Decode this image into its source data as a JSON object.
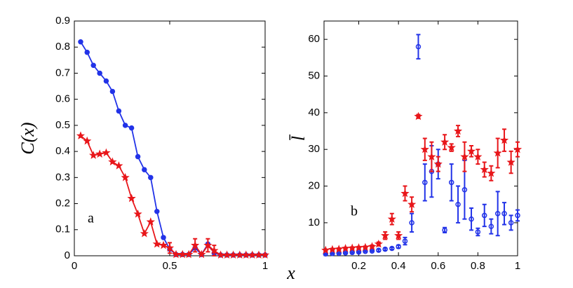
{
  "xlabel": "x",
  "chart_data": [
    {
      "type": "line",
      "ylabel": "C(x)",
      "annotation": "a",
      "x": [
        0.033,
        0.067,
        0.1,
        0.133,
        0.167,
        0.2,
        0.233,
        0.267,
        0.3,
        0.333,
        0.367,
        0.4,
        0.433,
        0.467,
        0.5,
        0.533,
        0.567,
        0.6,
        0.633,
        0.667,
        0.7,
        0.733,
        0.767,
        0.8,
        0.833,
        0.867,
        0.9,
        0.933,
        0.967,
        1
      ],
      "xlim": [
        0,
        1
      ],
      "xticks": [
        0,
        0.5,
        1
      ],
      "ylim": [
        0,
        0.9
      ],
      "yticks": [
        0,
        0.1,
        0.2,
        0.3,
        0.4,
        0.5,
        0.6,
        0.7,
        0.8,
        0.9
      ],
      "series": [
        {
          "color": "#2233e8",
          "marker": "circle",
          "filled": true,
          "lines": true,
          "values": [
            0.82,
            0.78,
            0.73,
            0.7,
            0.67,
            0.63,
            0.555,
            0.5,
            0.49,
            0.38,
            0.33,
            0.3,
            0.17,
            0.07,
            0.025,
            0.005,
            0.005,
            0.005,
            0.03,
            0.005,
            0.045,
            0.01,
            0.003,
            0.003,
            0.003,
            0.003,
            0.003,
            0.003,
            0.003,
            0.003
          ]
        },
        {
          "color": "#e8161a",
          "marker": "star",
          "filled": true,
          "lines": true,
          "values": [
            0.46,
            0.44,
            0.385,
            0.39,
            0.395,
            0.36,
            0.345,
            0.3,
            0.22,
            0.16,
            0.085,
            0.13,
            0.045,
            0.04,
            0.03,
            0.005,
            0.005,
            0.005,
            0.04,
            0.005,
            0.04,
            0.02,
            0.003,
            0.003,
            0.003,
            0.003,
            0.003,
            0.003,
            0.003,
            0.003
          ],
          "errors": [
            0,
            0,
            0,
            0,
            0,
            0,
            0,
            0,
            0,
            0,
            0,
            0,
            0,
            0,
            0.02,
            0,
            0,
            0,
            0.025,
            0,
            0.025,
            0.02,
            0,
            0,
            0,
            0,
            0,
            0,
            0,
            0
          ]
        }
      ]
    },
    {
      "type": "scatter",
      "ylabel": "l̄",
      "annotation": "b",
      "x": [
        0.033,
        0.067,
        0.1,
        0.133,
        0.167,
        0.2,
        0.233,
        0.267,
        0.3,
        0.333,
        0.367,
        0.4,
        0.433,
        0.467,
        0.5,
        0.533,
        0.567,
        0.6,
        0.633,
        0.667,
        0.7,
        0.733,
        0.767,
        0.8,
        0.833,
        0.867,
        0.9,
        0.933,
        0.967,
        1
      ],
      "xlim": [
        0.025,
        1
      ],
      "xticks": [
        0.2,
        0.4,
        0.6,
        0.8,
        1
      ],
      "ylim": [
        1,
        65
      ],
      "yticks": [
        10,
        20,
        30,
        40,
        50,
        60
      ],
      "series": [
        {
          "color": "#2233e8",
          "marker": "circle",
          "filled": false,
          "lines": false,
          "values": [
            1.5,
            1.6,
            1.7,
            1.8,
            1.9,
            2.0,
            2.2,
            2.3,
            2.5,
            2.8,
            3.0,
            3.5,
            5,
            10,
            58,
            21,
            24,
            26,
            8,
            21,
            15,
            19,
            11,
            7.5,
            12,
            9,
            12.5,
            12.5,
            10,
            12
          ],
          "errors": [
            0.2,
            0.2,
            0.2,
            0.2,
            0.2,
            0.2,
            0.2,
            0.2,
            0.3,
            0.3,
            0.3,
            0.4,
            1,
            2.5,
            3.3,
            5,
            7,
            4,
            0.7,
            5,
            5,
            8,
            3,
            1,
            3,
            2,
            6,
            3,
            2,
            1.5
          ]
        },
        {
          "color": "#e8161a",
          "marker": "star",
          "filled": true,
          "lines": false,
          "values": [
            2.5,
            2.7,
            2.8,
            3.0,
            3.1,
            3.2,
            3.3,
            3.5,
            4.2,
            6.5,
            11,
            6.5,
            18,
            15,
            39,
            30,
            28,
            26,
            32,
            30.5,
            35,
            28,
            29.5,
            28,
            24.5,
            23.5,
            29,
            32.5,
            26.5,
            30
          ],
          "errors": [
            0.3,
            0.3,
            0.3,
            0.3,
            0.3,
            0.3,
            0.3,
            0.4,
            0.5,
            1,
            1.5,
            1,
            2,
            2,
            0.5,
            3,
            4,
            2,
            2,
            1,
            1.5,
            4,
            1.5,
            2,
            2,
            2,
            4,
            3,
            3,
            2
          ]
        }
      ]
    }
  ]
}
